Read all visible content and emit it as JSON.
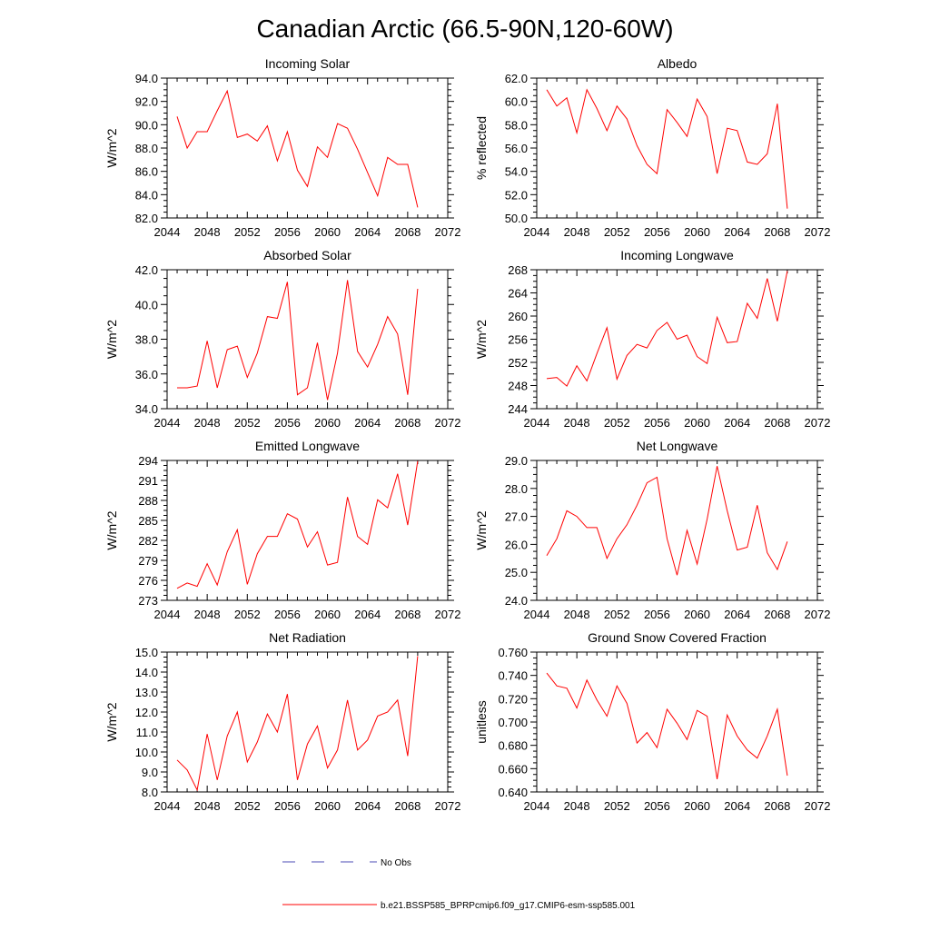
{
  "figure": {
    "title": "Canadian Arctic (66.5-90N,120-60W)",
    "colors": {
      "model": "#ff0000",
      "obs": "#4b4bb4"
    }
  },
  "legend": {
    "obs_label": "No Obs",
    "model_label": "b.e21.BSSP585_BPRPcmip6.f09_g17.CMIP6-esm-ssp585.001"
  },
  "chart_data": [
    {
      "type": "line",
      "title": "Incoming Solar",
      "ylabel": "W/m^2",
      "xlim": [
        2044,
        2072
      ],
      "ylim": [
        82.0,
        94.0
      ],
      "xticks": [
        "2044",
        "2048",
        "2052",
        "2056",
        "2060",
        "2064",
        "2068",
        "2072"
      ],
      "yticks": [
        "82.0",
        "84.0",
        "86.0",
        "88.0",
        "90.0",
        "92.0",
        "94.0"
      ],
      "x": [
        2045,
        2046,
        2047,
        2048,
        2049,
        2050,
        2051,
        2052,
        2053,
        2054,
        2055,
        2056,
        2057,
        2058,
        2059,
        2060,
        2061,
        2062,
        2063,
        2064,
        2065,
        2066,
        2067,
        2068,
        2069
      ],
      "series": [
        {
          "name": "b.e21.BSSP585_BPRPcmip6.f09_g17.CMIP6-esm-ssp585.001",
          "values": [
            90.7,
            88.0,
            89.4,
            89.4,
            91.2,
            92.9,
            88.9,
            89.2,
            88.6,
            89.9,
            86.9,
            89.4,
            86.1,
            84.7,
            88.1,
            87.2,
            90.1,
            89.7,
            87.9,
            85.9,
            83.9,
            87.2,
            86.6,
            86.6,
            82.9
          ]
        }
      ]
    },
    {
      "type": "line",
      "title": "Albedo",
      "ylabel": "% reflected",
      "xlim": [
        2044,
        2072
      ],
      "ylim": [
        50.0,
        62.0
      ],
      "xticks": [
        "2044",
        "2048",
        "2052",
        "2056",
        "2060",
        "2064",
        "2068",
        "2072"
      ],
      "yticks": [
        "50.0",
        "52.0",
        "54.0",
        "56.0",
        "58.0",
        "60.0",
        "62.0"
      ],
      "x": [
        2045,
        2046,
        2047,
        2048,
        2049,
        2050,
        2051,
        2052,
        2053,
        2054,
        2055,
        2056,
        2057,
        2058,
        2059,
        2060,
        2061,
        2062,
        2063,
        2064,
        2065,
        2066,
        2067,
        2068,
        2069
      ],
      "series": [
        {
          "name": "b.e21.BSSP585_BPRPcmip6.f09_g17.CMIP6-esm-ssp585.001",
          "values": [
            61.0,
            59.6,
            60.3,
            57.3,
            61.0,
            59.4,
            57.5,
            59.6,
            58.5,
            56.2,
            54.6,
            53.8,
            59.3,
            58.2,
            57.0,
            60.2,
            58.7,
            53.8,
            57.7,
            57.5,
            54.8,
            54.6,
            55.5,
            59.8,
            50.8
          ]
        }
      ]
    },
    {
      "type": "line",
      "title": "Absorbed Solar",
      "ylabel": "W/m^2",
      "xlim": [
        2044,
        2072
      ],
      "ylim": [
        34.0,
        42.0
      ],
      "xticks": [
        "2044",
        "2048",
        "2052",
        "2056",
        "2060",
        "2064",
        "2068",
        "2072"
      ],
      "yticks": [
        "34.0",
        "36.0",
        "38.0",
        "40.0",
        "42.0"
      ],
      "x": [
        2045,
        2046,
        2047,
        2048,
        2049,
        2050,
        2051,
        2052,
        2053,
        2054,
        2055,
        2056,
        2057,
        2058,
        2059,
        2060,
        2061,
        2062,
        2063,
        2064,
        2065,
        2066,
        2067,
        2068,
        2069
      ],
      "series": [
        {
          "name": "b.e21.BSSP585_BPRPcmip6.f09_g17.CMIP6-esm-ssp585.001",
          "values": [
            35.2,
            35.2,
            35.3,
            37.9,
            35.2,
            37.4,
            37.6,
            35.8,
            37.2,
            39.3,
            39.2,
            41.3,
            34.8,
            35.2,
            37.8,
            34.5,
            37.2,
            41.4,
            37.3,
            36.4,
            37.7,
            39.3,
            38.3,
            34.8,
            40.9
          ]
        }
      ]
    },
    {
      "type": "line",
      "title": "Incoming Longwave",
      "ylabel": "W/m^2",
      "xlim": [
        2044,
        2072
      ],
      "ylim": [
        244,
        268
      ],
      "xticks": [
        "2044",
        "2048",
        "2052",
        "2056",
        "2060",
        "2064",
        "2068",
        "2072"
      ],
      "yticks": [
        "244",
        "248",
        "252",
        "256",
        "260",
        "264",
        "268"
      ],
      "x": [
        2045,
        2046,
        2047,
        2048,
        2049,
        2050,
        2051,
        2052,
        2053,
        2054,
        2055,
        2056,
        2057,
        2058,
        2059,
        2060,
        2061,
        2062,
        2063,
        2064,
        2065,
        2066,
        2067,
        2068,
        2069
      ],
      "series": [
        {
          "name": "b.e21.BSSP585_BPRPcmip6.f09_g17.CMIP6-esm-ssp585.001",
          "values": [
            249.2,
            249.4,
            247.9,
            251.4,
            248.8,
            253.5,
            258.0,
            249.1,
            253.2,
            255.1,
            254.5,
            257.5,
            258.9,
            256.0,
            256.7,
            253.0,
            251.8,
            259.8,
            255.4,
            255.6,
            262.2,
            259.6,
            266.5,
            259.1,
            267.8
          ]
        }
      ]
    },
    {
      "type": "line",
      "title": "Emitted Longwave",
      "ylabel": "W/m^2",
      "xlim": [
        2044,
        2072
      ],
      "ylim": [
        273,
        294
      ],
      "xticks": [
        "2044",
        "2048",
        "2052",
        "2056",
        "2060",
        "2064",
        "2068",
        "2072"
      ],
      "yticks": [
        "273",
        "276",
        "279",
        "282",
        "285",
        "288",
        "291",
        "294"
      ],
      "x": [
        2045,
        2046,
        2047,
        2048,
        2049,
        2050,
        2051,
        2052,
        2053,
        2054,
        2055,
        2056,
        2057,
        2058,
        2059,
        2060,
        2061,
        2062,
        2063,
        2064,
        2065,
        2066,
        2067,
        2068,
        2069
      ],
      "series": [
        {
          "name": "b.e21.BSSP585_BPRPcmip6.f09_g17.CMIP6-esm-ssp585.001",
          "values": [
            274.8,
            275.6,
            275.1,
            278.5,
            275.3,
            280.3,
            283.6,
            275.4,
            280.0,
            282.6,
            282.6,
            286.0,
            285.2,
            281.0,
            283.3,
            278.3,
            278.7,
            288.5,
            282.6,
            281.4,
            288.1,
            286.9,
            292.0,
            284.3,
            293.9
          ]
        }
      ]
    },
    {
      "type": "line",
      "title": "Net Longwave",
      "ylabel": "W/m^2",
      "xlim": [
        2044,
        2072
      ],
      "ylim": [
        24.0,
        29.0
      ],
      "xticks": [
        "2044",
        "2048",
        "2052",
        "2056",
        "2060",
        "2064",
        "2068",
        "2072"
      ],
      "yticks": [
        "24.0",
        "25.0",
        "26.0",
        "27.0",
        "28.0",
        "29.0"
      ],
      "x": [
        2045,
        2046,
        2047,
        2048,
        2049,
        2050,
        2051,
        2052,
        2053,
        2054,
        2055,
        2056,
        2057,
        2058,
        2059,
        2060,
        2061,
        2062,
        2063,
        2064,
        2065,
        2066,
        2067,
        2068,
        2069
      ],
      "series": [
        {
          "name": "b.e21.BSSP585_BPRPcmip6.f09_g17.CMIP6-esm-ssp585.001",
          "values": [
            25.6,
            26.2,
            27.2,
            27.0,
            26.6,
            26.6,
            25.5,
            26.2,
            26.7,
            27.4,
            28.2,
            28.4,
            26.2,
            24.9,
            26.5,
            25.3,
            26.9,
            28.8,
            27.2,
            25.8,
            25.9,
            27.4,
            25.7,
            25.1,
            26.1
          ]
        }
      ]
    },
    {
      "type": "line",
      "title": "Net Radiation",
      "ylabel": "W/m^2",
      "xlim": [
        2044,
        2072
      ],
      "ylim": [
        8.0,
        15.0
      ],
      "xticks": [
        "2044",
        "2048",
        "2052",
        "2056",
        "2060",
        "2064",
        "2068",
        "2072"
      ],
      "yticks": [
        "8.0",
        "9.0",
        "10.0",
        "11.0",
        "12.0",
        "13.0",
        "14.0",
        "15.0"
      ],
      "x": [
        2045,
        2046,
        2047,
        2048,
        2049,
        2050,
        2051,
        2052,
        2053,
        2054,
        2055,
        2056,
        2057,
        2058,
        2059,
        2060,
        2061,
        2062,
        2063,
        2064,
        2065,
        2066,
        2067,
        2068,
        2069
      ],
      "series": [
        {
          "name": "b.e21.BSSP585_BPRPcmip6.f09_g17.CMIP6-esm-ssp585.001",
          "values": [
            9.6,
            9.1,
            8.1,
            10.9,
            8.6,
            10.8,
            12.0,
            9.5,
            10.5,
            11.9,
            11.0,
            12.9,
            8.6,
            10.4,
            11.3,
            9.2,
            10.1,
            12.6,
            10.1,
            10.6,
            11.8,
            12.0,
            12.6,
            9.8,
            14.8
          ]
        }
      ]
    },
    {
      "type": "line",
      "title": "Ground Snow Covered Fraction",
      "ylabel": "unitless",
      "xlim": [
        2044,
        2072
      ],
      "ylim": [
        0.64,
        0.76
      ],
      "xticks": [
        "2044",
        "2048",
        "2052",
        "2056",
        "2060",
        "2064",
        "2068",
        "2072"
      ],
      "yticks": [
        "0.640",
        "0.660",
        "0.680",
        "0.700",
        "0.720",
        "0.740",
        "0.760"
      ],
      "x": [
        2045,
        2046,
        2047,
        2048,
        2049,
        2050,
        2051,
        2052,
        2053,
        2054,
        2055,
        2056,
        2057,
        2058,
        2059,
        2060,
        2061,
        2062,
        2063,
        2064,
        2065,
        2066,
        2067,
        2068,
        2069
      ],
      "series": [
        {
          "name": "b.e21.BSSP585_BPRPcmip6.f09_g17.CMIP6-esm-ssp585.001",
          "values": [
            0.742,
            0.731,
            0.729,
            0.712,
            0.736,
            0.719,
            0.705,
            0.731,
            0.716,
            0.682,
            0.691,
            0.678,
            0.711,
            0.699,
            0.685,
            0.71,
            0.705,
            0.651,
            0.706,
            0.688,
            0.676,
            0.669,
            0.688,
            0.711,
            0.654
          ]
        }
      ]
    }
  ]
}
